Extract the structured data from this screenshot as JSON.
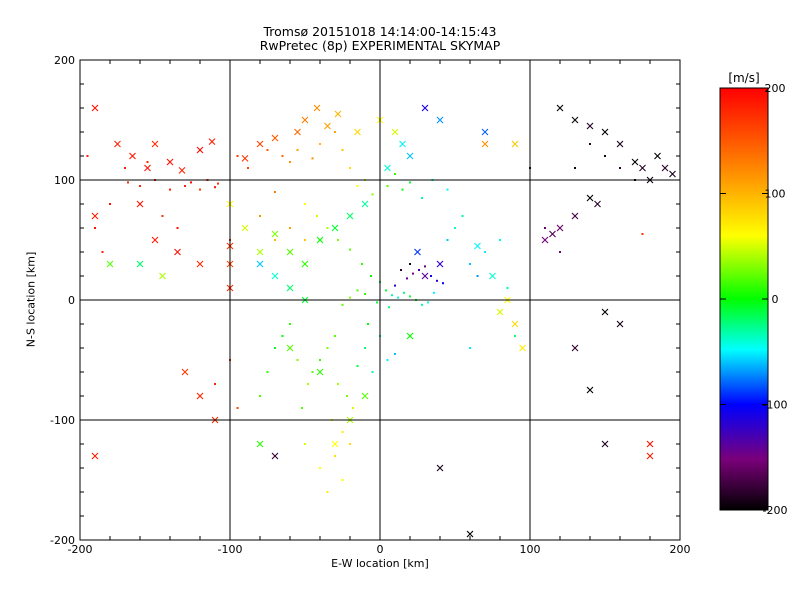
{
  "chart_data": {
    "type": "scatter",
    "title": "Tromsø 20151018 14:14:00-14:15:43",
    "subtitle": "RwPretec (8p) EXPERIMENTAL SKYMAP",
    "xlabel": "E-W location [km]",
    "ylabel": "N-S location [km]",
    "xlim": [
      -200,
      200
    ],
    "ylim": [
      -200,
      200
    ],
    "xticks": [
      "-200",
      "-100",
      "0",
      "100",
      "200"
    ],
    "yticks": [
      "-200",
      "-100",
      "0",
      "100",
      "200"
    ],
    "grid": true,
    "colorbar": {
      "label": "[m/s]",
      "min": -200,
      "max": 200,
      "ticks": [
        "200",
        "100",
        "0",
        "-100",
        "-200"
      ],
      "colormap": [
        "#000000",
        "#7a007a",
        "#0000ff",
        "#00ffff",
        "#00ff00",
        "#ffff00",
        "#ff7f00",
        "#ff0000"
      ]
    },
    "series": [
      {
        "name": "dot",
        "marker": "dot",
        "points": [
          [
            -168,
            98,
            180
          ],
          [
            -160,
            95,
            175
          ],
          [
            -150,
            100,
            190
          ],
          [
            -140,
            92,
            185
          ],
          [
            -130,
            95,
            180
          ],
          [
            -126,
            98,
            195
          ],
          [
            -120,
            92,
            170
          ],
          [
            -115,
            100,
            180
          ],
          [
            -110,
            94,
            190
          ],
          [
            -108,
            97,
            175
          ],
          [
            -180,
            80,
            190
          ],
          [
            -170,
            110,
            185
          ],
          [
            -155,
            115,
            180
          ],
          [
            -145,
            70,
            175
          ],
          [
            -135,
            60,
            190
          ],
          [
            -100,
            50,
            170
          ],
          [
            -95,
            120,
            165
          ],
          [
            -88,
            110,
            160
          ],
          [
            -75,
            125,
            150
          ],
          [
            -65,
            120,
            140
          ],
          [
            -60,
            115,
            120
          ],
          [
            -55,
            125,
            110
          ],
          [
            -45,
            118,
            120
          ],
          [
            -40,
            130,
            100
          ],
          [
            -30,
            140,
            110
          ],
          [
            -25,
            125,
            90
          ],
          [
            -20,
            110,
            80
          ],
          [
            -15,
            95,
            60
          ],
          [
            -10,
            100,
            40
          ],
          [
            -5,
            88,
            30
          ],
          [
            5,
            95,
            20
          ],
          [
            10,
            105,
            10
          ],
          [
            15,
            92,
            0
          ],
          [
            20,
            98,
            -10
          ],
          [
            28,
            85,
            -30
          ],
          [
            35,
            100,
            -40
          ],
          [
            45,
            92,
            -50
          ],
          [
            -50,
            80,
            60
          ],
          [
            -42,
            70,
            50
          ],
          [
            -35,
            60,
            40
          ],
          [
            -28,
            50,
            30
          ],
          [
            -20,
            42,
            20
          ],
          [
            -12,
            30,
            10
          ],
          [
            -6,
            20,
            0
          ],
          [
            0,
            15,
            -20
          ],
          [
            4,
            8,
            -10
          ],
          [
            8,
            4,
            -30
          ],
          [
            12,
            2,
            -40
          ],
          [
            16,
            6,
            -20
          ],
          [
            20,
            3,
            -10
          ],
          [
            24,
            0,
            0
          ],
          [
            28,
            -4,
            -30
          ],
          [
            32,
            -2,
            -40
          ],
          [
            36,
            6,
            -50
          ],
          [
            -10,
            5,
            10
          ],
          [
            -15,
            8,
            20
          ],
          [
            -20,
            2,
            30
          ],
          [
            -25,
            -4,
            20
          ],
          [
            -2,
            -2,
            -10
          ],
          [
            6,
            -6,
            -20
          ],
          [
            10,
            12,
            -120
          ],
          [
            18,
            18,
            -140
          ],
          [
            22,
            22,
            -150
          ],
          [
            26,
            25,
            -130
          ],
          [
            30,
            28,
            -160
          ],
          [
            34,
            20,
            -110
          ],
          [
            38,
            16,
            -120
          ],
          [
            42,
            14,
            -100
          ],
          [
            14,
            25,
            -180
          ],
          [
            20,
            30,
            -190
          ],
          [
            -30,
            -30,
            20
          ],
          [
            -35,
            -40,
            30
          ],
          [
            -40,
            -50,
            10
          ],
          [
            -45,
            -60,
            20
          ],
          [
            -28,
            -70,
            40
          ],
          [
            -22,
            -80,
            30
          ],
          [
            -18,
            -90,
            50
          ],
          [
            -32,
            -100,
            60
          ],
          [
            -25,
            -110,
            70
          ],
          [
            -20,
            -120,
            80
          ],
          [
            -60,
            -20,
            10
          ],
          [
            -65,
            -30,
            0
          ],
          [
            -70,
            -40,
            -10
          ],
          [
            -75,
            -60,
            10
          ],
          [
            -80,
            -80,
            20
          ],
          [
            -55,
            -50,
            30
          ],
          [
            -48,
            -70,
            40
          ],
          [
            -52,
            -90,
            20
          ],
          [
            -10,
            -40,
            -20
          ],
          [
            -5,
            -60,
            -30
          ],
          [
            0,
            -30,
            -40
          ],
          [
            5,
            -50,
            -50
          ],
          [
            10,
            -45,
            -60
          ],
          [
            -15,
            -55,
            -10
          ],
          [
            -8,
            -20,
            0
          ],
          [
            -40,
            -140,
            60
          ],
          [
            -35,
            -160,
            70
          ],
          [
            -30,
            -130,
            80
          ],
          [
            -50,
            -120,
            50
          ],
          [
            -25,
            -150,
            60
          ],
          [
            60,
            30,
            -60
          ],
          [
            65,
            20,
            -70
          ],
          [
            70,
            40,
            -50
          ],
          [
            80,
            50,
            -40
          ],
          [
            85,
            10,
            -30
          ],
          [
            90,
            -30,
            -20
          ],
          [
            60,
            -40,
            -50
          ],
          [
            -190,
            60,
            190
          ],
          [
            -185,
            40,
            180
          ],
          [
            -195,
            120,
            185
          ],
          [
            150,
            120,
            -190
          ],
          [
            160,
            110,
            -180
          ],
          [
            170,
            100,
            -200
          ],
          [
            140,
            130,
            -185
          ],
          [
            130,
            110,
            -195
          ],
          [
            100,
            110,
            -175
          ],
          [
            110,
            60,
            -160
          ],
          [
            120,
            40,
            -150
          ],
          [
            175,
            55,
            170
          ],
          [
            -100,
            -50,
            170
          ],
          [
            -110,
            -70,
            180
          ],
          [
            -95,
            -90,
            160
          ],
          [
            50,
            60,
            -40
          ],
          [
            55,
            70,
            -30
          ],
          [
            45,
            50,
            -60
          ],
          [
            -70,
            90,
            130
          ],
          [
            -80,
            70,
            120
          ],
          [
            -60,
            60,
            110
          ],
          [
            -50,
            50,
            90
          ],
          [
            -70,
            50,
            100
          ]
        ]
      },
      {
        "name": "cross",
        "marker": "x",
        "points": [
          [
            -190,
            160,
            190
          ],
          [
            -175,
            130,
            180
          ],
          [
            -165,
            120,
            185
          ],
          [
            -150,
            130,
            175
          ],
          [
            -140,
            115,
            190
          ],
          [
            -132,
            108,
            180
          ],
          [
            -120,
            125,
            195
          ],
          [
            -112,
            132,
            185
          ],
          [
            -90,
            118,
            170
          ],
          [
            -80,
            130,
            160
          ],
          [
            -70,
            135,
            150
          ],
          [
            -55,
            140,
            140
          ],
          [
            -50,
            150,
            130
          ],
          [
            -42,
            160,
            120
          ],
          [
            -35,
            145,
            110
          ],
          [
            -28,
            155,
            100
          ],
          [
            -15,
            140,
            80
          ],
          [
            0,
            150,
            60
          ],
          [
            10,
            140,
            50
          ],
          [
            -160,
            80,
            190
          ],
          [
            -150,
            50,
            185
          ],
          [
            -135,
            40,
            190
          ],
          [
            -120,
            30,
            175
          ],
          [
            -100,
            45,
            170
          ],
          [
            -160,
            30,
            -20
          ],
          [
            -180,
            30,
            20
          ],
          [
            -145,
            20,
            40
          ],
          [
            -190,
            70,
            185
          ],
          [
            -155,
            110,
            190
          ],
          [
            -100,
            80,
            60
          ],
          [
            -90,
            60,
            50
          ],
          [
            -80,
            40,
            40
          ],
          [
            -70,
            55,
            30
          ],
          [
            -60,
            40,
            20
          ],
          [
            -50,
            30,
            10
          ],
          [
            -40,
            50,
            0
          ],
          [
            -30,
            60,
            -10
          ],
          [
            -20,
            70,
            -20
          ],
          [
            -10,
            80,
            -30
          ],
          [
            5,
            110,
            -40
          ],
          [
            15,
            130,
            -50
          ],
          [
            20,
            120,
            -60
          ],
          [
            40,
            150,
            -70
          ],
          [
            70,
            140,
            -80
          ],
          [
            90,
            130,
            90
          ],
          [
            70,
            130,
            120
          ],
          [
            30,
            160,
            -110
          ],
          [
            40,
            30,
            -120
          ],
          [
            30,
            20,
            -140
          ],
          [
            25,
            40,
            -90
          ],
          [
            120,
            160,
            -200
          ],
          [
            130,
            150,
            -195
          ],
          [
            140,
            145,
            -185
          ],
          [
            150,
            140,
            -200
          ],
          [
            160,
            130,
            -190
          ],
          [
            170,
            115,
            -200
          ],
          [
            175,
            110,
            -185
          ],
          [
            180,
            100,
            -195
          ],
          [
            185,
            120,
            -200
          ],
          [
            190,
            110,
            -185
          ],
          [
            195,
            105,
            -190
          ],
          [
            140,
            85,
            -200
          ],
          [
            145,
            80,
            -185
          ],
          [
            130,
            70,
            -175
          ],
          [
            120,
            60,
            -160
          ],
          [
            115,
            55,
            -170
          ],
          [
            110,
            50,
            -150
          ],
          [
            150,
            -10,
            -200
          ],
          [
            160,
            -20,
            -190
          ],
          [
            130,
            -40,
            -180
          ],
          [
            140,
            -75,
            -200
          ],
          [
            150,
            -120,
            -190
          ],
          [
            180,
            -120,
            190
          ],
          [
            180,
            -130,
            185
          ],
          [
            -190,
            -130,
            185
          ],
          [
            -70,
            -130,
            -180
          ],
          [
            60,
            -195,
            -200
          ],
          [
            -30,
            -120,
            60
          ],
          [
            -20,
            -100,
            40
          ],
          [
            -10,
            -80,
            20
          ],
          [
            20,
            -30,
            0
          ],
          [
            -40,
            -60,
            10
          ],
          [
            -60,
            -40,
            20
          ],
          [
            90,
            -20,
            80
          ],
          [
            95,
            -40,
            70
          ],
          [
            85,
            0,
            60
          ],
          [
            80,
            -10,
            50
          ],
          [
            75,
            20,
            -40
          ],
          [
            65,
            45,
            -50
          ],
          [
            -130,
            -60,
            170
          ],
          [
            -120,
            -80,
            180
          ],
          [
            -110,
            -100,
            175
          ],
          [
            -80,
            -120,
            10
          ],
          [
            40,
            -140,
            -190
          ],
          [
            -100,
            30,
            160
          ],
          [
            -100,
            10,
            175
          ],
          [
            -80,
            30,
            -60
          ],
          [
            -70,
            20,
            -40
          ],
          [
            -60,
            10,
            -20
          ],
          [
            -50,
            0,
            -10
          ]
        ]
      }
    ]
  }
}
